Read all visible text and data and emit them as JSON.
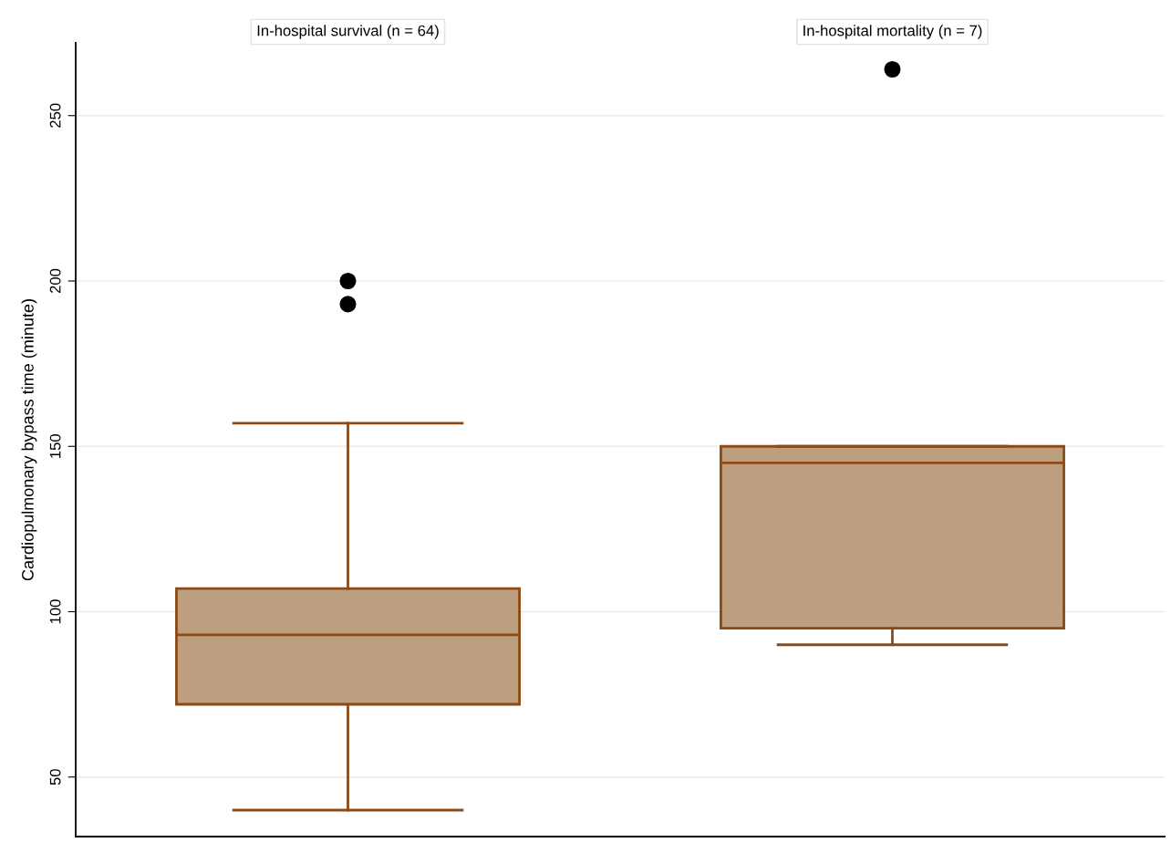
{
  "chart_data": {
    "type": "box",
    "ylabel": "Cardiopulmonary bypass time (minute)",
    "categories": [
      "In-hospital survival (n = 64)",
      "In-hospital mortality (n = 7)"
    ],
    "color": "#bc9f7e",
    "boxes": [
      {
        "low": 40,
        "q1": 72,
        "median": 93,
        "q3": 107,
        "high": 157,
        "outliers": [
          200,
          193
        ]
      },
      {
        "low": 90,
        "q1": 95,
        "median": 145,
        "q3": 150,
        "high": 150,
        "outliers": [
          264
        ]
      }
    ],
    "ylim": [
      32,
      272
    ],
    "yticks": [
      50,
      100,
      150,
      200,
      250
    ],
    "grid": "y"
  }
}
